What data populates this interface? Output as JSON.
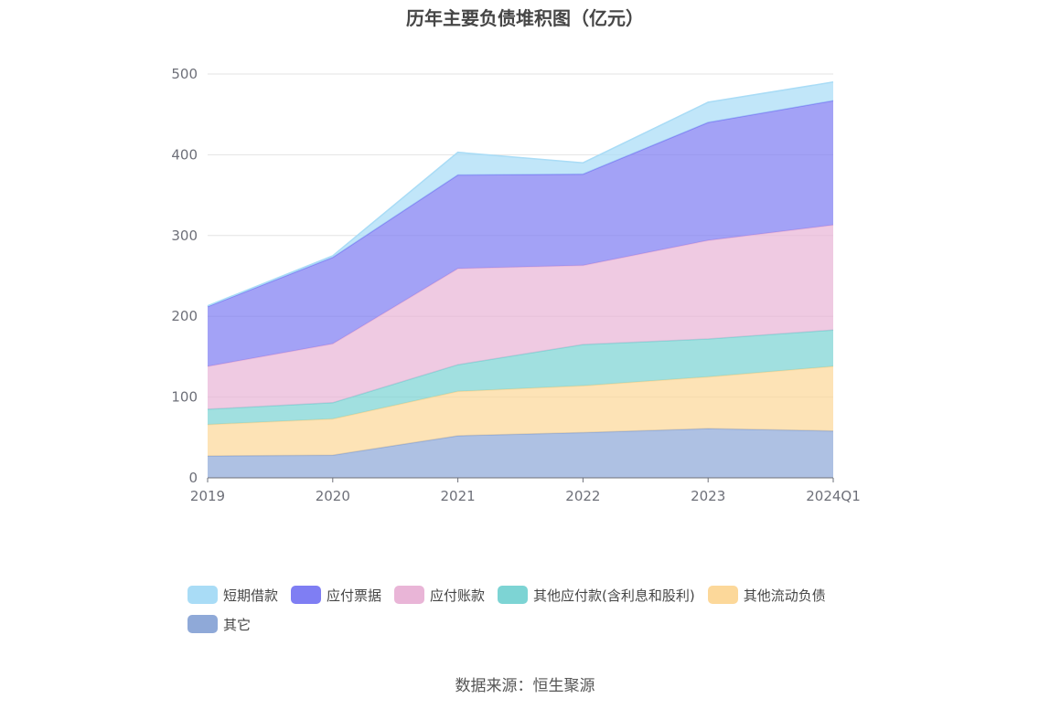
{
  "chart_data": {
    "type": "area",
    "stacked": true,
    "title": "历年主要负债堆积图（亿元）",
    "categories": [
      "2019",
      "2020",
      "2021",
      "2022",
      "2023",
      "2024Q1"
    ],
    "ylim": [
      0,
      500
    ],
    "yticks": [
      0,
      100,
      200,
      300,
      400,
      500
    ],
    "grid": true,
    "legend_position": "bottom",
    "series": [
      {
        "name": "其它",
        "color": "#8fa9d8",
        "values": [
          27,
          28,
          52,
          56,
          61,
          58
        ]
      },
      {
        "name": "其他流动负债",
        "color": "#fcd89a",
        "values": [
          39,
          45,
          55,
          58,
          64,
          80
        ]
      },
      {
        "name": "其他应付款(含利息和股利)",
        "color": "#7dd4d4",
        "values": [
          19,
          20,
          33,
          51,
          47,
          45
        ]
      },
      {
        "name": "应付账款",
        "color": "#e9b5d7",
        "values": [
          53,
          73,
          119,
          98,
          122,
          130
        ]
      },
      {
        "name": "应付票据",
        "color": "#7f7ef3",
        "values": [
          74,
          107,
          116,
          113,
          146,
          154
        ]
      },
      {
        "name": "短期借款",
        "color": "#a9dcf6",
        "values": [
          1,
          2,
          28,
          14,
          25,
          23
        ]
      }
    ],
    "legend_order": [
      "短期借款",
      "应付票据",
      "应付账款",
      "其他应付款(含利息和股利)",
      "其他流动负债",
      "其它"
    ]
  },
  "footer": {
    "source": "数据来源：恒生聚源"
  }
}
